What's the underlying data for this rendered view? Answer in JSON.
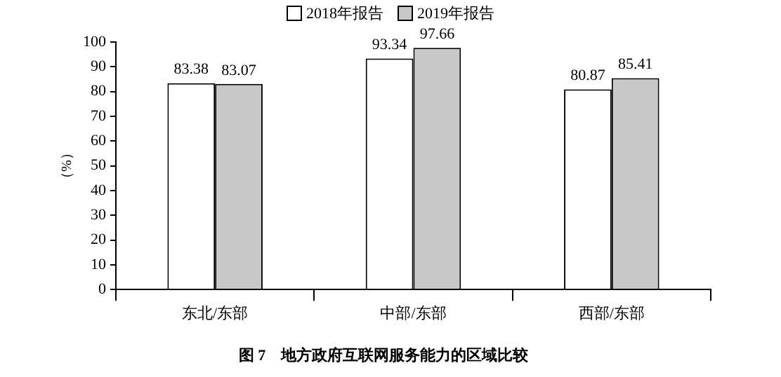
{
  "chart_data": {
    "type": "bar",
    "title": "图 7　地方政府互联网服务能力的区域比较",
    "ylabel": "（%）",
    "categories": [
      "东北/东部",
      "中部/东部",
      "西部/东部"
    ],
    "series": [
      {
        "name": "2018年报告",
        "color": "#ffffff",
        "values": [
          83.38,
          93.34,
          80.87
        ]
      },
      {
        "name": "2019年报告",
        "color": "#c8c8c8",
        "values": [
          83.07,
          97.66,
          85.41
        ]
      }
    ],
    "ylim": [
      0,
      100
    ],
    "yticks": [
      0,
      10,
      20,
      30,
      40,
      50,
      60,
      70,
      80,
      90,
      100
    ],
    "grid": false,
    "legend": "top",
    "data_labels": true
  }
}
